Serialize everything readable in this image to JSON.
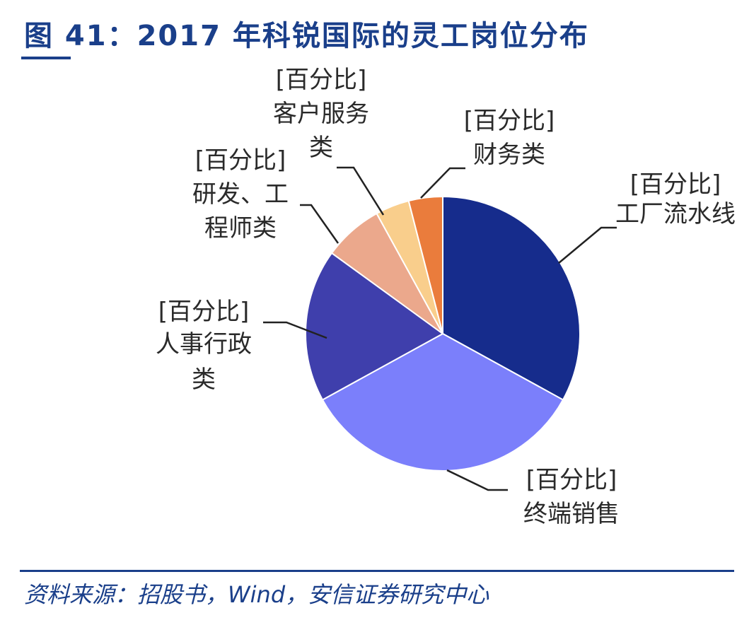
{
  "title": "图 41：2017 年科锐国际的灵工岗位分布",
  "source": "资料来源：招股书，Wind，安信证券研究中心",
  "chart_data": {
    "type": "pie",
    "title": "图 41：2017 年科锐国际的灵工岗位分布",
    "start_angle_deg": 0,
    "direction": "clockwise",
    "slices": [
      {
        "label_top": "[百分比]",
        "label_name": "工厂流水线",
        "value": 33,
        "color": "#162c8c"
      },
      {
        "label_top": "[百分比]",
        "label_name": "终端销售",
        "value": 34,
        "color": "#7b7ffb"
      },
      {
        "label_top": "[百分比]",
        "label_name": "人事行政类",
        "value": 18,
        "color": "#3f3fac"
      },
      {
        "label_top": "[百分比]",
        "label_name": "研发、工程师类",
        "value": 7,
        "color": "#eba88c"
      },
      {
        "label_top": "[百分比]",
        "label_name": "客户服务类",
        "value": 4,
        "color": "#f9ce8c"
      },
      {
        "label_top": "[百分比]",
        "label_name": "财务类",
        "value": 4,
        "color": "#ea7c3c"
      }
    ]
  }
}
